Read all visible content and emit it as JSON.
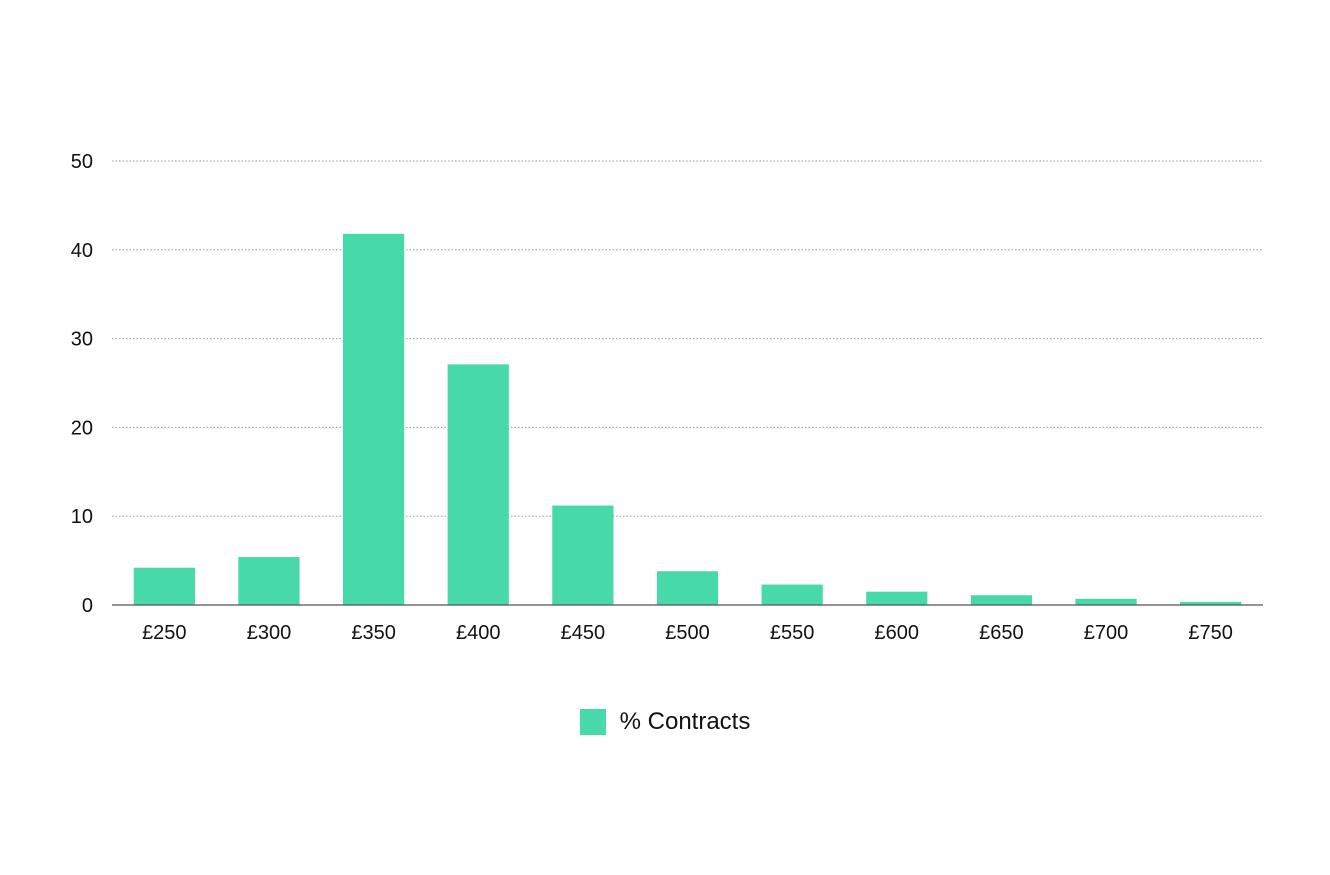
{
  "chart_data": {
    "type": "bar",
    "categories": [
      "£250",
      "£300",
      "£350",
      "£400",
      "£450",
      "£500",
      "£550",
      "£600",
      "£650",
      "£700",
      "£750"
    ],
    "series": [
      {
        "name": "% Contracts",
        "values": [
          4.2,
          5.4,
          41.8,
          27.1,
          11.2,
          3.8,
          2.3,
          1.5,
          1.1,
          0.7,
          0.35
        ],
        "color": "#47d9aa"
      }
    ],
    "ylim": [
      0,
      50
    ],
    "yticks": [
      0,
      10,
      20,
      30,
      40,
      50
    ],
    "grid": true,
    "legend": "bottom-center",
    "title": "",
    "xlabel": "",
    "ylabel": ""
  }
}
